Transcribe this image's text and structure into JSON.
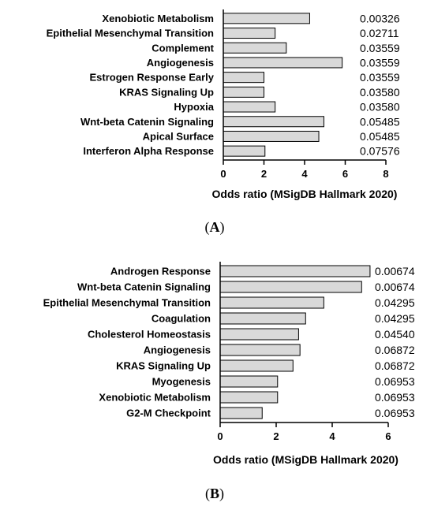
{
  "chart_data": [
    {
      "type": "bar",
      "orientation": "horizontal",
      "panel": "A",
      "categories": [
        "Xenobiotic Metabolism",
        "Epithelial Mesenchymal Transition",
        "Complement",
        "Angiogenesis",
        "Estrogen Response Early",
        "KRAS Signaling Up",
        "Hypoxia",
        "Wnt-beta Catenin Signaling",
        "Apical Surface",
        "Interferon Alpha Response"
      ],
      "values": [
        4.25,
        2.55,
        3.1,
        5.85,
        2.0,
        2.0,
        2.55,
        4.95,
        4.7,
        2.05
      ],
      "annotations": [
        "0.00326",
        "0.02711",
        "0.03559",
        "0.03559",
        "0.03559",
        "0.03580",
        "0.03580",
        "0.05485",
        "0.05485",
        "0.07576"
      ],
      "xlabel": "Odds ratio (MSigDB Hallmark 2020)",
      "xlim": [
        0,
        8
      ],
      "xticks": [
        "0",
        "2",
        "4",
        "6",
        "8"
      ],
      "grid": false,
      "bar_color": "#d9d9d9"
    },
    {
      "type": "bar",
      "orientation": "horizontal",
      "panel": "B",
      "categories": [
        "Androgen Response",
        "Wnt-beta Catenin Signaling",
        "Epithelial Mesenchymal Transition",
        "Coagulation",
        "Cholesterol Homeostasis",
        "Angiogenesis",
        "KRAS Signaling Up",
        "Myogenesis",
        "Xenobiotic Metabolism",
        "G2-M Checkpoint"
      ],
      "values": [
        5.35,
        5.05,
        3.7,
        3.05,
        2.8,
        2.85,
        2.6,
        2.05,
        2.05,
        1.5
      ],
      "annotations": [
        "0.00674",
        "0.00674",
        "0.04295",
        "0.04295",
        "0.04540",
        "0.06872",
        "0.06872",
        "0.06953",
        "0.06953",
        "0.06953"
      ],
      "xlabel": "Odds ratio (MSigDB Hallmark 2020)",
      "xlim": [
        0,
        6
      ],
      "xticks": [
        "0",
        "2",
        "4",
        "6"
      ],
      "grid": false,
      "bar_color": "#d9d9d9"
    }
  ],
  "panels": {
    "a": {
      "open": "(",
      "letter": "A",
      "close": ")"
    },
    "b": {
      "open": "(",
      "letter": "B",
      "close": ")"
    }
  }
}
